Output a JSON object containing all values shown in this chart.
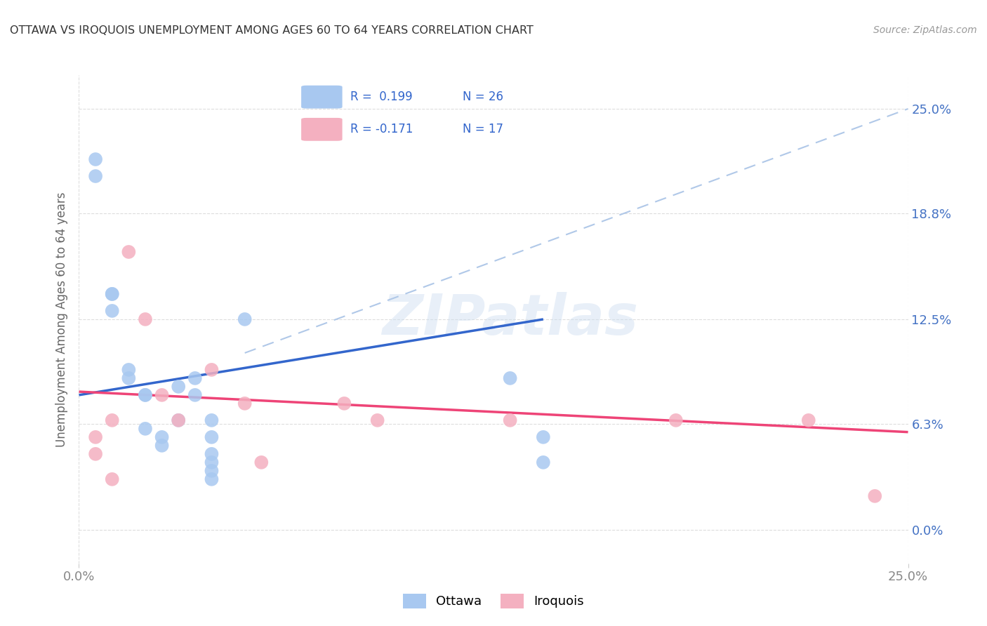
{
  "title": "OTTAWA VS IROQUOIS UNEMPLOYMENT AMONG AGES 60 TO 64 YEARS CORRELATION CHART",
  "source": "Source: ZipAtlas.com",
  "ylabel": "Unemployment Among Ages 60 to 64 years",
  "xlim": [
    0.0,
    0.25
  ],
  "ylim": [
    -0.02,
    0.27
  ],
  "yticks": [
    0.0,
    0.063,
    0.125,
    0.188,
    0.25
  ],
  "ytick_labels": [
    "0.0%",
    "6.3%",
    "12.5%",
    "18.8%",
    "25.0%"
  ],
  "xtick_labels": [
    "0.0%",
    "25.0%"
  ],
  "ottawa_R": 0.199,
  "ottawa_N": 26,
  "iroquois_R": -0.171,
  "iroquois_N": 17,
  "ottawa_color": "#a8c8f0",
  "iroquois_color": "#f4b0c0",
  "ottawa_line_color": "#3366cc",
  "iroquois_line_color": "#ee4477",
  "dash_line_color": "#b0c8e8",
  "background_color": "#ffffff",
  "watermark": "ZIPatlas",
  "ottawa_x": [
    0.005,
    0.005,
    0.01,
    0.01,
    0.01,
    0.015,
    0.015,
    0.02,
    0.02,
    0.02,
    0.025,
    0.025,
    0.03,
    0.03,
    0.035,
    0.035,
    0.04,
    0.04,
    0.04,
    0.04,
    0.04,
    0.04,
    0.05,
    0.13,
    0.14,
    0.14
  ],
  "ottawa_y": [
    0.21,
    0.22,
    0.13,
    0.14,
    0.14,
    0.095,
    0.09,
    0.08,
    0.08,
    0.06,
    0.055,
    0.05,
    0.085,
    0.065,
    0.09,
    0.08,
    0.065,
    0.055,
    0.045,
    0.04,
    0.035,
    0.03,
    0.125,
    0.09,
    0.055,
    0.04
  ],
  "iroquois_x": [
    0.005,
    0.005,
    0.01,
    0.01,
    0.015,
    0.02,
    0.025,
    0.03,
    0.04,
    0.05,
    0.055,
    0.08,
    0.09,
    0.13,
    0.18,
    0.22,
    0.24
  ],
  "iroquois_y": [
    0.055,
    0.045,
    0.065,
    0.03,
    0.165,
    0.125,
    0.08,
    0.065,
    0.095,
    0.075,
    0.04,
    0.075,
    0.065,
    0.065,
    0.065,
    0.065,
    0.02
  ],
  "ottawa_line_x": [
    0.0,
    0.14
  ],
  "ottawa_line_y_start": 0.08,
  "ottawa_line_y_end": 0.125,
  "iroquois_line_x": [
    0.0,
    0.25
  ],
  "iroquois_line_y_start": 0.082,
  "iroquois_line_y_end": 0.058,
  "dash_line_x": [
    0.05,
    0.25
  ],
  "dash_line_y_start": 0.105,
  "dash_line_y_end": 0.25
}
